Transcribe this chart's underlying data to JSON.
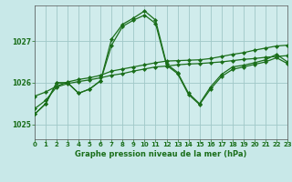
{
  "bg_color": "#c8e8e8",
  "plot_bg": "#d0ecec",
  "grid_color": "#a0c8c8",
  "line_color": "#1a6e1a",
  "bottom_bar_color": "#2a6e2a",
  "xlabel": "Graphe pression niveau de la mer (hPa)",
  "xlim": [
    0,
    23
  ],
  "ylim": [
    1024.65,
    1027.85
  ],
  "yticks": [
    1025,
    1026,
    1027
  ],
  "xticks": [
    0,
    1,
    2,
    3,
    4,
    5,
    6,
    7,
    8,
    9,
    10,
    11,
    12,
    13,
    14,
    15,
    16,
    17,
    18,
    19,
    20,
    21,
    22,
    23
  ],
  "figsize": [
    3.2,
    2.0
  ],
  "dpi": 100,
  "series": [
    [
      1025.25,
      1025.5,
      1026.0,
      1026.0,
      1025.75,
      1025.85,
      1026.05,
      1027.05,
      1027.4,
      1027.55,
      1027.72,
      1027.5,
      1026.45,
      1026.25,
      1025.75,
      1025.5,
      1025.9,
      1026.2,
      1026.38,
      1026.42,
      1026.48,
      1026.55,
      1026.68,
      1026.5
    ],
    [
      1025.25,
      1025.5,
      1026.0,
      1026.0,
      1025.75,
      1025.85,
      1026.05,
      1026.9,
      1027.35,
      1027.5,
      1027.62,
      1027.42,
      1026.42,
      1026.22,
      1025.72,
      1025.48,
      1025.85,
      1026.15,
      1026.32,
      1026.38,
      1026.44,
      1026.5,
      1026.6,
      1026.46
    ],
    [
      1025.68,
      1025.78,
      1025.92,
      1026.02,
      1026.08,
      1026.12,
      1026.18,
      1026.28,
      1026.33,
      1026.38,
      1026.43,
      1026.48,
      1026.52,
      1026.53,
      1026.54,
      1026.55,
      1026.58,
      1026.63,
      1026.68,
      1026.72,
      1026.78,
      1026.83,
      1026.88,
      1026.9
    ],
    [
      1025.38,
      1025.58,
      1025.9,
      1025.98,
      1026.03,
      1026.07,
      1026.12,
      1026.18,
      1026.22,
      1026.28,
      1026.33,
      1026.38,
      1026.4,
      1026.43,
      1026.45,
      1026.46,
      1026.48,
      1026.5,
      1026.53,
      1026.56,
      1026.58,
      1026.61,
      1026.63,
      1026.65
    ]
  ]
}
